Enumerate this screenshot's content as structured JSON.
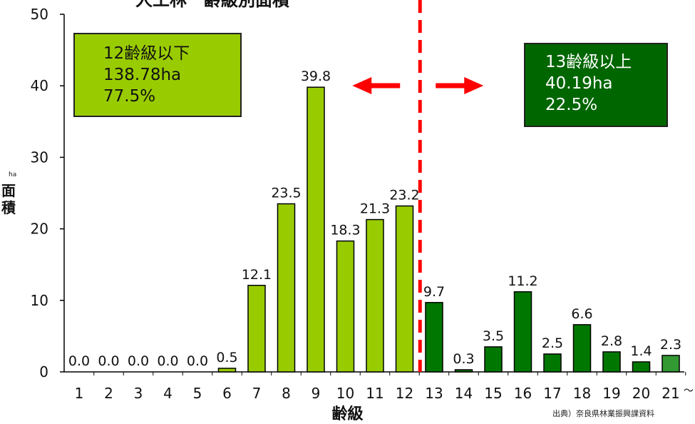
{
  "title_partial": "人工林　齢級別面積",
  "box_left": {
    "line1": "12齢級以下",
    "line2": "138.78ha",
    "line3": "77.5%"
  },
  "box_right": {
    "line1": "13齢級以上",
    "line2": "40.19ha",
    "line3": "22.5%"
  },
  "source": "出典）奈良県林業振興課資料",
  "colors": {
    "light_bar": "#99cc00",
    "dark_bar": "#007700",
    "last_bar": "#339933",
    "divider": "#ff0000"
  },
  "chart_data": {
    "type": "bar",
    "title": "",
    "xlabel": "齢級",
    "ylabel": "面積",
    "yunit": "ha",
    "ylim": [
      0,
      50
    ],
    "yticks": [
      0,
      10,
      20,
      30,
      40,
      50
    ],
    "categories": [
      "1",
      "2",
      "3",
      "4",
      "5",
      "6",
      "7",
      "8",
      "9",
      "10",
      "11",
      "12",
      "13",
      "14",
      "15",
      "16",
      "17",
      "18",
      "19",
      "20",
      "21"
    ],
    "values": [
      0.0,
      0.0,
      0.0,
      0.0,
      0.0,
      0.5,
      12.1,
      23.5,
      39.8,
      18.3,
      21.3,
      23.2,
      9.7,
      0.3,
      3.5,
      11.2,
      2.5,
      6.6,
      2.8,
      1.4,
      2.3
    ],
    "data_labels": [
      "0.0",
      "0.0",
      "0.0",
      "0.0",
      "0.0",
      "0.5",
      "12.1",
      "23.5",
      "39.8",
      "18.3",
      "21.3",
      "23.2",
      "9.7",
      "0.3",
      "3.5",
      "11.2",
      "2.5",
      "6.6",
      "2.8",
      "1.4",
      "2.3"
    ],
    "last_tick_suffix": "～",
    "grid": false,
    "divider_between": [
      "12",
      "13"
    ]
  }
}
